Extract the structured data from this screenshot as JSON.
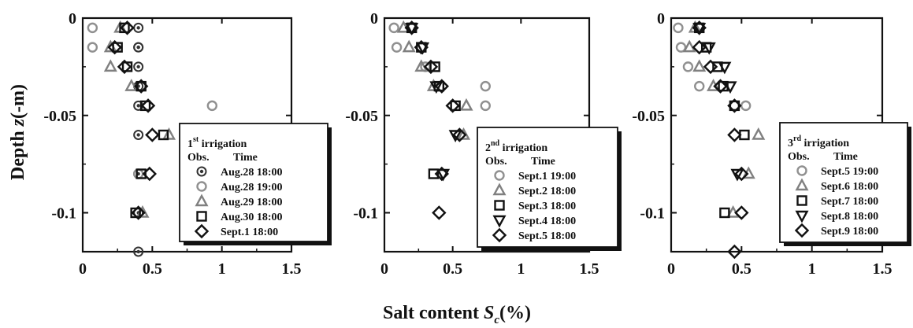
{
  "figure": {
    "ylabel_main": "Depth",
    "ylabel_var": "z",
    "ylabel_unit": "(-m)",
    "xlabel_main": "Salt content",
    "xlabel_var": "S",
    "xlabel_sub": "c",
    "xlabel_unit": "(%)"
  },
  "chart_data": [
    {
      "type": "scatter",
      "xlim": [
        0,
        1.5
      ],
      "ylim": [
        -0.12,
        0
      ],
      "x_ticks": [
        "0",
        "0.5",
        "1",
        "1.5"
      ],
      "y_ticks": [
        "0",
        "-0.05",
        "-0.1"
      ],
      "legend": {
        "placement": "right",
        "title_num": "1",
        "title_sup": "st",
        "title_rest": " irrigation",
        "col_obs": "Obs.",
        "col_time": "Time"
      },
      "series": [
        {
          "name": "Aug.28 18:00",
          "marker": "double-circle",
          "color": "#333333",
          "x": [
            0.4,
            0.4,
            0.4,
            0.4,
            0.4,
            0.4,
            0.4,
            0.4,
            0.4,
            0.4
          ],
          "y": [
            -0.005,
            -0.015,
            -0.025,
            -0.035,
            -0.045,
            -0.06,
            -0.08,
            -0.1,
            -0.12,
            -0.015
          ]
        },
        {
          "name": "Aug.28 19:00",
          "marker": "circle",
          "color": "#909090",
          "x": [
            0.07,
            0.07,
            0.93,
            0.4
          ],
          "y": [
            -0.005,
            -0.015,
            -0.045,
            -0.08
          ]
        },
        {
          "name": "Aug.29 18:00",
          "marker": "triangle-up",
          "color": "#808080",
          "x": [
            0.27,
            0.2,
            0.2,
            0.35,
            0.62,
            0.43
          ],
          "y": [
            -0.005,
            -0.015,
            -0.025,
            -0.035,
            -0.06,
            -0.1
          ]
        },
        {
          "name": "Aug.30 18:00",
          "marker": "square",
          "color": "#111111",
          "x": [
            0.3,
            0.25,
            0.32,
            0.42,
            0.45,
            0.58,
            0.42,
            0.38
          ],
          "y": [
            -0.005,
            -0.015,
            -0.025,
            -0.035,
            -0.045,
            -0.06,
            -0.08,
            -0.1
          ]
        },
        {
          "name": "Sept.1  18:00",
          "marker": "diamond",
          "color": "#111111",
          "x": [
            0.32,
            0.23,
            0.3,
            0.42,
            0.47,
            0.5,
            0.48,
            0.4
          ],
          "y": [
            -0.005,
            -0.015,
            -0.025,
            -0.035,
            -0.045,
            -0.06,
            -0.08,
            -0.1
          ]
        }
      ]
    },
    {
      "type": "scatter",
      "xlim": [
        0,
        1.5
      ],
      "ylim": [
        -0.12,
        0
      ],
      "x_ticks": [
        "0",
        "0.5",
        "1",
        "1.5"
      ],
      "y_ticks": [
        "0",
        "-0.05",
        "-0.1"
      ],
      "legend": {
        "placement": "right",
        "title_num": "2",
        "title_sup": "nd",
        "title_rest": " irrigation",
        "col_obs": "Obs.",
        "col_time": "Time"
      },
      "series": [
        {
          "name": "Sept.1 19:00",
          "marker": "circle",
          "color": "#909090",
          "x": [
            0.07,
            0.09,
            0.3,
            0.74,
            0.74
          ],
          "y": [
            -0.005,
            -0.015,
            -0.025,
            -0.035,
            -0.045
          ]
        },
        {
          "name": "Sept.2 18:00",
          "marker": "triangle-up",
          "color": "#808080",
          "x": [
            0.14,
            0.18,
            0.27,
            0.36,
            0.6,
            0.58
          ],
          "y": [
            -0.005,
            -0.015,
            -0.025,
            -0.035,
            -0.045,
            -0.06
          ]
        },
        {
          "name": "Sept.3 18:00",
          "marker": "square",
          "color": "#111111",
          "x": [
            0.2,
            0.27,
            0.37,
            0.4,
            0.52,
            0.36
          ],
          "y": [
            -0.005,
            -0.015,
            -0.025,
            -0.035,
            -0.045,
            -0.08
          ]
        },
        {
          "name": "Sept.4 18:00",
          "marker": "triangle-down",
          "color": "#111111",
          "x": [
            0.2,
            0.28,
            0.38,
            0.52,
            0.43
          ],
          "y": [
            -0.005,
            -0.015,
            -0.035,
            -0.06,
            -0.08
          ]
        },
        {
          "name": "Sept.5 18:00",
          "marker": "diamond",
          "color": "#111111",
          "x": [
            0.2,
            0.27,
            0.34,
            0.42,
            0.5,
            0.55,
            0.42,
            0.4
          ],
          "y": [
            -0.005,
            -0.015,
            -0.025,
            -0.035,
            -0.045,
            -0.06,
            -0.08,
            -0.1
          ]
        }
      ]
    },
    {
      "type": "scatter",
      "xlim": [
        0,
        1.5
      ],
      "ylim": [
        -0.12,
        0
      ],
      "x_ticks": [
        "0",
        "0.5",
        "1",
        "1.5"
      ],
      "y_ticks": [
        "0",
        "-0.05",
        "-0.1"
      ],
      "legend": {
        "placement": "right",
        "title_num": "3",
        "title_sup": "rd",
        "title_rest": " irrigation",
        "col_obs": "Obs.",
        "col_time": "Time"
      },
      "series": [
        {
          "name": "Sept.5 19:00",
          "marker": "circle",
          "color": "#909090",
          "x": [
            0.05,
            0.07,
            0.12,
            0.2,
            0.53
          ],
          "y": [
            -0.005,
            -0.015,
            -0.025,
            -0.035,
            -0.045
          ]
        },
        {
          "name": "Sept.6 18:00",
          "marker": "triangle-up",
          "color": "#808080",
          "x": [
            0.17,
            0.13,
            0.2,
            0.3,
            0.62,
            0.55,
            0.44
          ],
          "y": [
            -0.005,
            -0.015,
            -0.025,
            -0.035,
            -0.06,
            -0.08,
            -0.1
          ]
        },
        {
          "name": "Sept.7 18:00",
          "marker": "square",
          "color": "#111111",
          "x": [
            0.2,
            0.25,
            0.33,
            0.37,
            0.45,
            0.52,
            0.38
          ],
          "y": [
            -0.005,
            -0.015,
            -0.025,
            -0.035,
            -0.045,
            -0.06,
            -0.1
          ]
        },
        {
          "name": "Sept.8 18:00",
          "marker": "triangle-down",
          "color": "#111111",
          "x": [
            0.2,
            0.27,
            0.38,
            0.42,
            0.47
          ],
          "y": [
            -0.005,
            -0.015,
            -0.025,
            -0.035,
            -0.08
          ]
        },
        {
          "name": "Sept.9 18:00",
          "marker": "diamond",
          "color": "#111111",
          "x": [
            0.2,
            0.2,
            0.28,
            0.35,
            0.45,
            0.45,
            0.5,
            0.5,
            0.45
          ],
          "y": [
            -0.005,
            -0.015,
            -0.025,
            -0.035,
            -0.045,
            -0.06,
            -0.08,
            -0.1,
            -0.12
          ]
        }
      ]
    }
  ]
}
